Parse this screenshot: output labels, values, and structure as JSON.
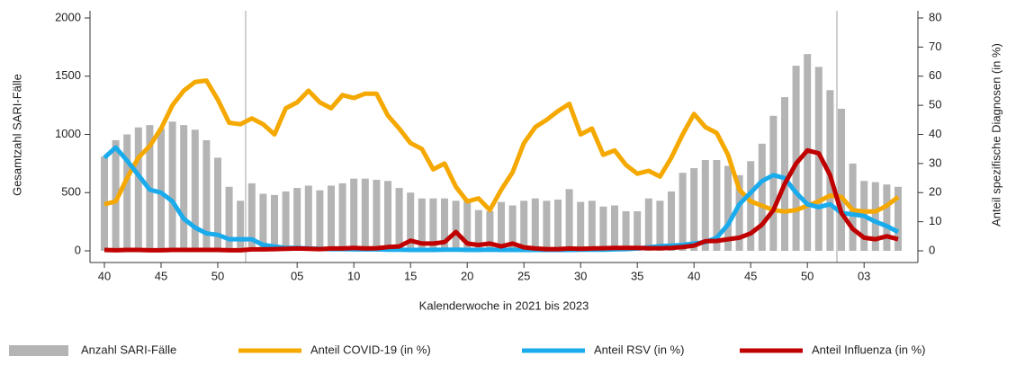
{
  "chart_data": {
    "type": "bar_line",
    "x_label": "Kalenderwoche in 2021 bis 2023",
    "y_label": "Gesamtzahl SARI-Fälle",
    "y2_label": "Anteil spezifische Diagnosen (in %)",
    "categories": [
      "40",
      null,
      null,
      null,
      null,
      "45",
      null,
      null,
      null,
      null,
      "50",
      null,
      null,
      null,
      null,
      null,
      null,
      "05",
      null,
      null,
      null,
      null,
      "10",
      null,
      null,
      null,
      null,
      "15",
      null,
      null,
      null,
      null,
      "20",
      null,
      null,
      null,
      null,
      "25",
      null,
      null,
      null,
      null,
      "30",
      null,
      null,
      null,
      null,
      "35",
      null,
      null,
      null,
      null,
      "40",
      null,
      null,
      null,
      null,
      "45",
      null,
      null,
      null,
      null,
      "50",
      null,
      null,
      null,
      null,
      "03",
      null,
      null,
      null
    ],
    "ylim": [
      0,
      2000
    ],
    "yticks": [
      0,
      500,
      1000,
      1500,
      2000
    ],
    "y2lim": [
      0,
      80
    ],
    "y2ticks": [
      0,
      10,
      20,
      30,
      40,
      50,
      60,
      70,
      80
    ],
    "legend": "bottom",
    "series": [
      {
        "name": "Anzahl SARI-Fälle",
        "type": "bar",
        "color": "#b4b4b4",
        "values": [
          810,
          950,
          1000,
          1060,
          1080,
          1050,
          1110,
          1080,
          1040,
          950,
          800,
          550,
          430,
          580,
          490,
          480,
          510,
          540,
          560,
          520,
          560,
          580,
          620,
          620,
          610,
          600,
          540,
          500,
          450,
          450,
          450,
          430,
          440,
          350,
          340,
          420,
          390,
          430,
          450,
          430,
          440,
          530,
          420,
          430,
          380,
          390,
          340,
          340,
          450,
          430,
          510,
          670,
          710,
          780,
          780,
          730,
          650,
          770,
          920,
          1160,
          1320,
          1590,
          1690,
          1580,
          1380,
          1220,
          750,
          600,
          590,
          570,
          550
        ]
      },
      {
        "name": "Anteil COVID-19 (in %)",
        "type": "line",
        "axis": "y2",
        "color": "#f5a800",
        "values": [
          16,
          17,
          25,
          32,
          36,
          42,
          50,
          55,
          58,
          58.5,
          52,
          44,
          43.5,
          45.5,
          43.5,
          40,
          49,
          51,
          55,
          51,
          49,
          53.5,
          52.5,
          54,
          54,
          46.5,
          42,
          37,
          35,
          28,
          30,
          22,
          17,
          18,
          14,
          21,
          27,
          37,
          42.5,
          45,
          48,
          50.5,
          40,
          42,
          33,
          34.5,
          29.5,
          26.5,
          27.5,
          25.5,
          32,
          40,
          47,
          42.5,
          40.5,
          33,
          21,
          17,
          15.5,
          14,
          13.5,
          14,
          15.5,
          17,
          19,
          18.5,
          14,
          13.5,
          13.5,
          15.5,
          18.5
        ]
      },
      {
        "name": "Anteil RSV (in %)",
        "type": "line",
        "axis": "y2",
        "color": "#1aabec",
        "values": [
          32,
          35.5,
          31,
          26,
          21,
          20,
          17,
          11,
          8,
          6,
          5.5,
          4,
          4,
          4,
          2,
          1.5,
          1,
          1,
          0.8,
          0.7,
          0.6,
          0.6,
          0.5,
          0.5,
          0.5,
          0.4,
          0.4,
          0.3,
          0.3,
          0.3,
          0.4,
          0.4,
          0.3,
          0.3,
          0.4,
          0.3,
          0.3,
          0.3,
          0.3,
          0.3,
          0.3,
          0.3,
          0.4,
          0.4,
          0.4,
          0.5,
          0.6,
          0.8,
          1.2,
          1.6,
          1.8,
          2,
          2.5,
          3,
          4.5,
          9,
          16,
          20,
          24,
          26,
          25,
          20,
          16,
          15,
          16,
          13,
          12.5,
          12,
          10,
          8.5,
          6.5
        ]
      },
      {
        "name": "Anteil Influenza (in %)",
        "type": "line",
        "axis": "y2",
        "color": "#c00000",
        "values": [
          0.3,
          0.2,
          0.3,
          0.3,
          0.2,
          0.2,
          0.3,
          0.3,
          0.3,
          0.3,
          0.3,
          0.2,
          0.2,
          0.5,
          0.5,
          0.6,
          0.7,
          0.8,
          0.7,
          0.6,
          0.8,
          0.8,
          1,
          0.8,
          0.9,
          1.3,
          1.5,
          3.5,
          2.5,
          2.5,
          3,
          6.5,
          2.5,
          2,
          2.5,
          1.5,
          2.5,
          1.2,
          0.8,
          0.6,
          0.6,
          0.8,
          0.7,
          0.8,
          0.9,
          1,
          1,
          1,
          0.9,
          0.9,
          1,
          1.3,
          1.8,
          3.3,
          3.4,
          4,
          4.5,
          6,
          9,
          14,
          23,
          30,
          34.5,
          33.5,
          26,
          13,
          7.5,
          4.5,
          4,
          5,
          4
        ]
      }
    ]
  }
}
